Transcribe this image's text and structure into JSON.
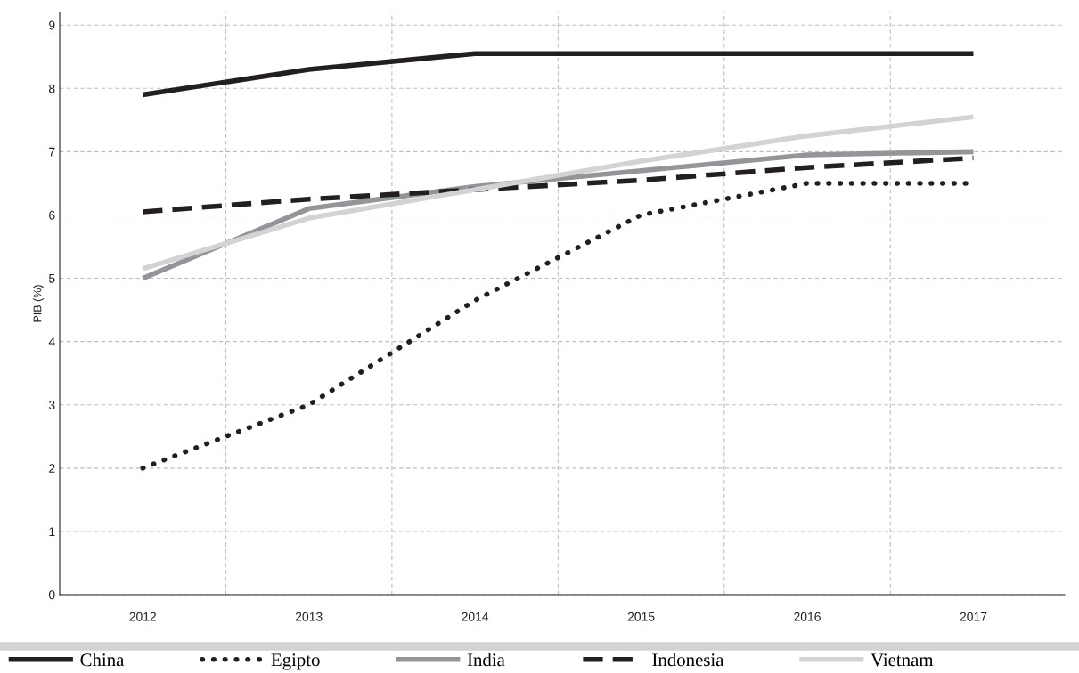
{
  "chart_data": {
    "type": "line",
    "ylabel": "PIB (%)",
    "categories": [
      "2012",
      "2013",
      "2014",
      "2015",
      "2016",
      "2017"
    ],
    "series": [
      {
        "name": "China",
        "color": "#231f20",
        "line_style": "solid",
        "values": [
          7.9,
          8.3,
          8.55,
          8.55,
          8.55,
          8.55
        ]
      },
      {
        "name": "Egipto",
        "color": "#231f20",
        "line_style": "dotted",
        "values": [
          2.0,
          3.0,
          4.65,
          6.0,
          6.5,
          6.5
        ]
      },
      {
        "name": "India",
        "color": "#939598",
        "line_style": "solid",
        "values": [
          5.0,
          6.1,
          6.45,
          6.7,
          6.95,
          7.0
        ]
      },
      {
        "name": "Indonesia",
        "color": "#231f20",
        "line_style": "dashed",
        "values": [
          6.05,
          6.25,
          6.4,
          6.55,
          6.75,
          6.9
        ]
      },
      {
        "name": "Vietnam",
        "color": "#d1d3d4",
        "line_style": "solid",
        "values": [
          5.15,
          5.95,
          6.4,
          6.85,
          7.25,
          7.55
        ]
      }
    ],
    "ylim": [
      0,
      9.2
    ],
    "yticks": [
      0,
      1,
      2,
      3,
      4,
      5,
      6,
      7,
      8,
      9
    ],
    "grid": true,
    "legend": "bottom left",
    "marker": "none"
  }
}
